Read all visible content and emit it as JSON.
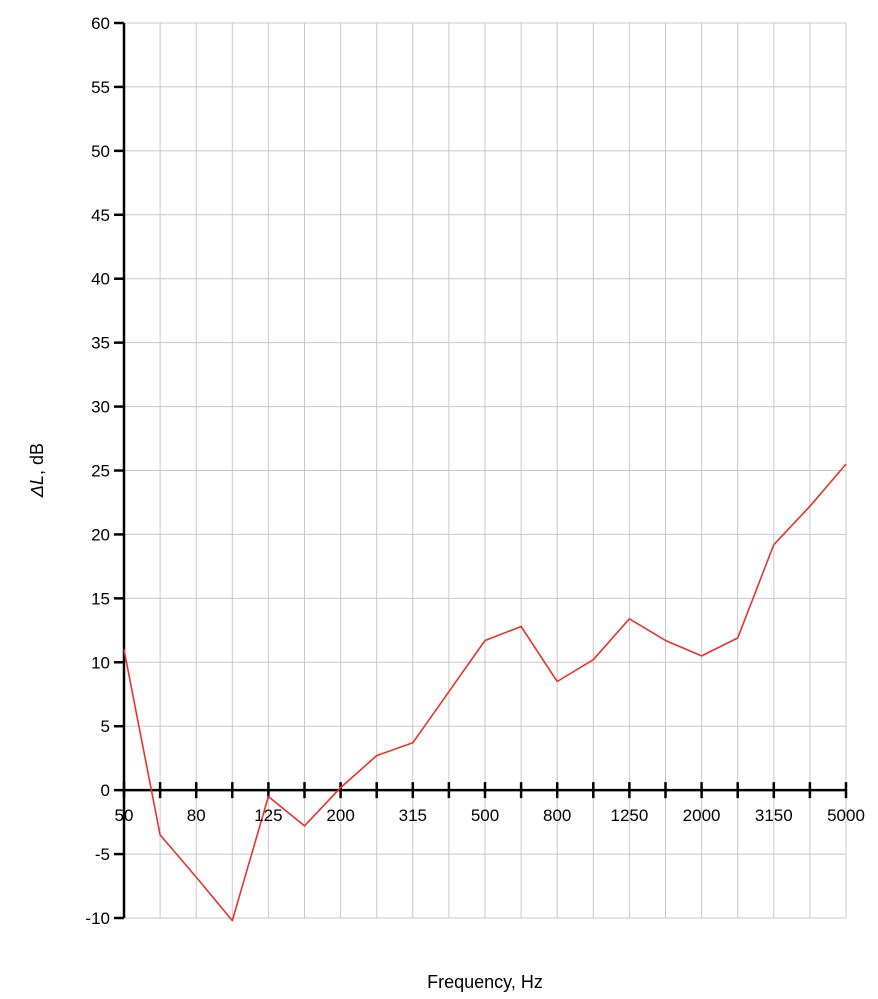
{
  "chart_data": {
    "type": "line",
    "title": "",
    "xlabel": "Frequency, Hz",
    "ylabel": "ΔL, dB",
    "ylabel_italic_part": "ΔL",
    "ylabel_rest": ", dB",
    "x": [
      "50",
      "63",
      "80",
      "100",
      "125",
      "160",
      "200",
      "250",
      "315",
      "400",
      "500",
      "630",
      "800",
      "1000",
      "1250",
      "1600",
      "2000",
      "2500",
      "3150",
      "4000",
      "5000"
    ],
    "x_tick_labels": [
      "50",
      "80",
      "125",
      "200",
      "315",
      "500",
      "800",
      "1250",
      "2000",
      "3150",
      "5000"
    ],
    "ylim": [
      -10,
      60
    ],
    "y_ticks": [
      60,
      55,
      50,
      45,
      40,
      35,
      30,
      25,
      20,
      15,
      10,
      5,
      0,
      -5,
      -10
    ],
    "grid": true,
    "line_color": "#e8322c",
    "series": [
      {
        "values": [
          11,
          -3.5,
          -6.8,
          -10.2,
          -0.5,
          -2.8,
          0.2,
          2.7,
          3.7,
          7.7,
          11.7,
          12.8,
          8.5,
          10.2,
          13.4,
          11.7,
          10.5,
          11.9,
          19.2,
          22.2,
          25.5
        ]
      }
    ]
  }
}
